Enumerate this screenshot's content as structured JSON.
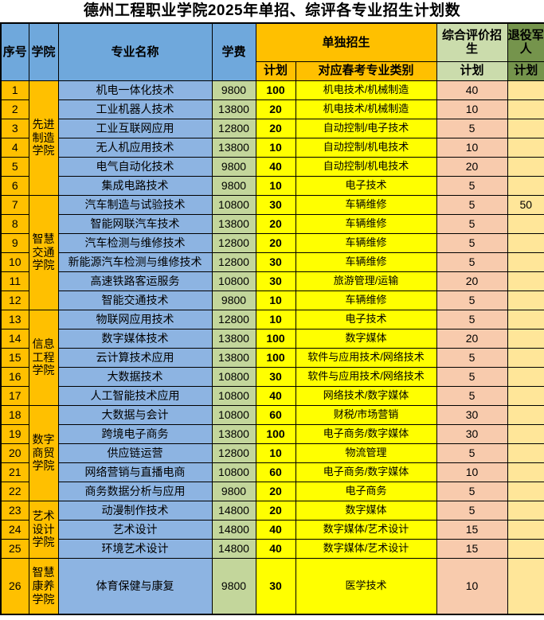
{
  "title": "德州工程职业学院2025年单招、综评各专业招生计划数",
  "header": {
    "index": "序号",
    "college": "学院",
    "major": "专业名称",
    "tuition": "学费",
    "single_admission": "单独招生",
    "single_plan": "计划",
    "category": "对应春考专业类别",
    "comprehensive_admission": "综合评价招生",
    "comprehensive_plan": "计划",
    "veteran": "退役军人",
    "veteran_plan": "计划"
  },
  "college_groups": [
    {
      "name": "先进制造学院",
      "rows": 6
    },
    {
      "name": "智慧交通学院",
      "rows": 6
    },
    {
      "name": "信息工程学院",
      "rows": 5
    },
    {
      "name": "数字商贸学院",
      "rows": 5
    },
    {
      "name": "艺术设计学院",
      "rows": 3
    },
    {
      "name": "智慧康养学院",
      "rows": 1
    }
  ],
  "rows": [
    {
      "no": "1",
      "major": "机电一体化技术",
      "tuition": "9800",
      "single_plan": "100",
      "category": "机电技术/机械制造",
      "comp_plan": "40",
      "veteran_plan": ""
    },
    {
      "no": "2",
      "major": "工业机器人技术",
      "tuition": "13800",
      "single_plan": "20",
      "category": "机电技术/机械制造",
      "comp_plan": "10",
      "veteran_plan": ""
    },
    {
      "no": "3",
      "major": "工业互联网应用",
      "tuition": "12800",
      "single_plan": "20",
      "category": "自动控制/电子技术",
      "comp_plan": "5",
      "veteran_plan": ""
    },
    {
      "no": "4",
      "major": "无人机应用技术",
      "tuition": "13800",
      "single_plan": "10",
      "category": "自动控制/机电技术",
      "comp_plan": "10",
      "veteran_plan": ""
    },
    {
      "no": "5",
      "major": "电气自动化技术",
      "tuition": "9800",
      "single_plan": "40",
      "category": "自动控制/机电技术",
      "comp_plan": "20",
      "veteran_plan": ""
    },
    {
      "no": "6",
      "major": "集成电路技术",
      "tuition": "9800",
      "single_plan": "10",
      "category": "电子技术",
      "comp_plan": "5",
      "veteran_plan": ""
    },
    {
      "no": "7",
      "major": "汽车制造与试验技术",
      "tuition": "10800",
      "single_plan": "30",
      "category": "车辆维修",
      "comp_plan": "5",
      "veteran_plan": "50"
    },
    {
      "no": "8",
      "major": "智能网联汽车技术",
      "tuition": "13800",
      "single_plan": "20",
      "category": "车辆维修",
      "comp_plan": "5",
      "veteran_plan": ""
    },
    {
      "no": "9",
      "major": "汽车检测与维修技术",
      "tuition": "12800",
      "single_plan": "20",
      "category": "车辆维修",
      "comp_plan": "5",
      "veteran_plan": ""
    },
    {
      "no": "10",
      "major": "新能源汽车检测与维修技术",
      "tuition": "12800",
      "single_plan": "30",
      "category": "车辆维修",
      "comp_plan": "5",
      "veteran_plan": ""
    },
    {
      "no": "11",
      "major": "高速铁路客运服务",
      "tuition": "10800",
      "single_plan": "30",
      "category": "旅游管理/运输",
      "comp_plan": "20",
      "veteran_plan": ""
    },
    {
      "no": "12",
      "major": "智能交通技术",
      "tuition": "9800",
      "single_plan": "10",
      "category": "车辆维修",
      "comp_plan": "5",
      "veteran_plan": ""
    },
    {
      "no": "13",
      "major": "物联网应用技术",
      "tuition": "12800",
      "single_plan": "10",
      "category": "电子技术",
      "comp_plan": "5",
      "veteran_plan": ""
    },
    {
      "no": "14",
      "major": "数字媒体技术",
      "tuition": "13800",
      "single_plan": "100",
      "category": "数字媒体",
      "comp_plan": "20",
      "veteran_plan": ""
    },
    {
      "no": "15",
      "major": "云计算技术应用",
      "tuition": "13800",
      "single_plan": "100",
      "category": "软件与应用技术/网络技术",
      "comp_plan": "5",
      "veteran_plan": ""
    },
    {
      "no": "16",
      "major": "大数据技术",
      "tuition": "10800",
      "single_plan": "30",
      "category": "软件与应用技术/网络技术",
      "comp_plan": "5",
      "veteran_plan": ""
    },
    {
      "no": "17",
      "major": "人工智能技术应用",
      "tuition": "10800",
      "single_plan": "40",
      "category": "网络技术/数字媒体",
      "comp_plan": "5",
      "veteran_plan": ""
    },
    {
      "no": "18",
      "major": "大数据与会计",
      "tuition": "10800",
      "single_plan": "60",
      "category": "财税/市场营销",
      "comp_plan": "30",
      "veteran_plan": ""
    },
    {
      "no": "19",
      "major": "跨境电子商务",
      "tuition": "13800",
      "single_plan": "100",
      "category": "电子商务/数字媒体",
      "comp_plan": "30",
      "veteran_plan": ""
    },
    {
      "no": "20",
      "major": "供应链运营",
      "tuition": "12800",
      "single_plan": "10",
      "category": "物流管理",
      "comp_plan": "5",
      "veteran_plan": ""
    },
    {
      "no": "21",
      "major": "网络营销与直播电商",
      "tuition": "10800",
      "single_plan": "60",
      "category": "电子商务/数字媒体",
      "comp_plan": "10",
      "veteran_plan": ""
    },
    {
      "no": "22",
      "major": "商务数据分析与应用",
      "tuition": "9800",
      "single_plan": "20",
      "category": "电子商务",
      "comp_plan": "5",
      "veteran_plan": ""
    },
    {
      "no": "23",
      "major": "动漫制作技术",
      "tuition": "14800",
      "single_plan": "20",
      "category": "数字媒体",
      "comp_plan": "5",
      "veteran_plan": ""
    },
    {
      "no": "24",
      "major": "艺术设计",
      "tuition": "14800",
      "single_plan": "40",
      "category": "数字媒体/艺术设计",
      "comp_plan": "15",
      "veteran_plan": ""
    },
    {
      "no": "25",
      "major": "环境艺术设计",
      "tuition": "14800",
      "single_plan": "40",
      "category": "数字媒体/艺术设计",
      "comp_plan": "15",
      "veteran_plan": ""
    },
    {
      "no": "26",
      "major": "体育保健与康复",
      "tuition": "9800",
      "single_plan": "30",
      "category": "医学技术",
      "comp_plan": "10",
      "veteran_plan": ""
    }
  ],
  "colors": {
    "header-blue": "#6FA8DC",
    "cell-blue": "#8DB4E2",
    "orange": "#FFC000",
    "yellow": "#FFFF00",
    "fee-green": "#C3D69B",
    "comp-header-green": "#CBDCAC",
    "comp-cell-peach": "#F8CBAD",
    "veteran-header-green": "#75944C",
    "veteran-cell-gold": "#FFE699",
    "border": "#000000"
  }
}
